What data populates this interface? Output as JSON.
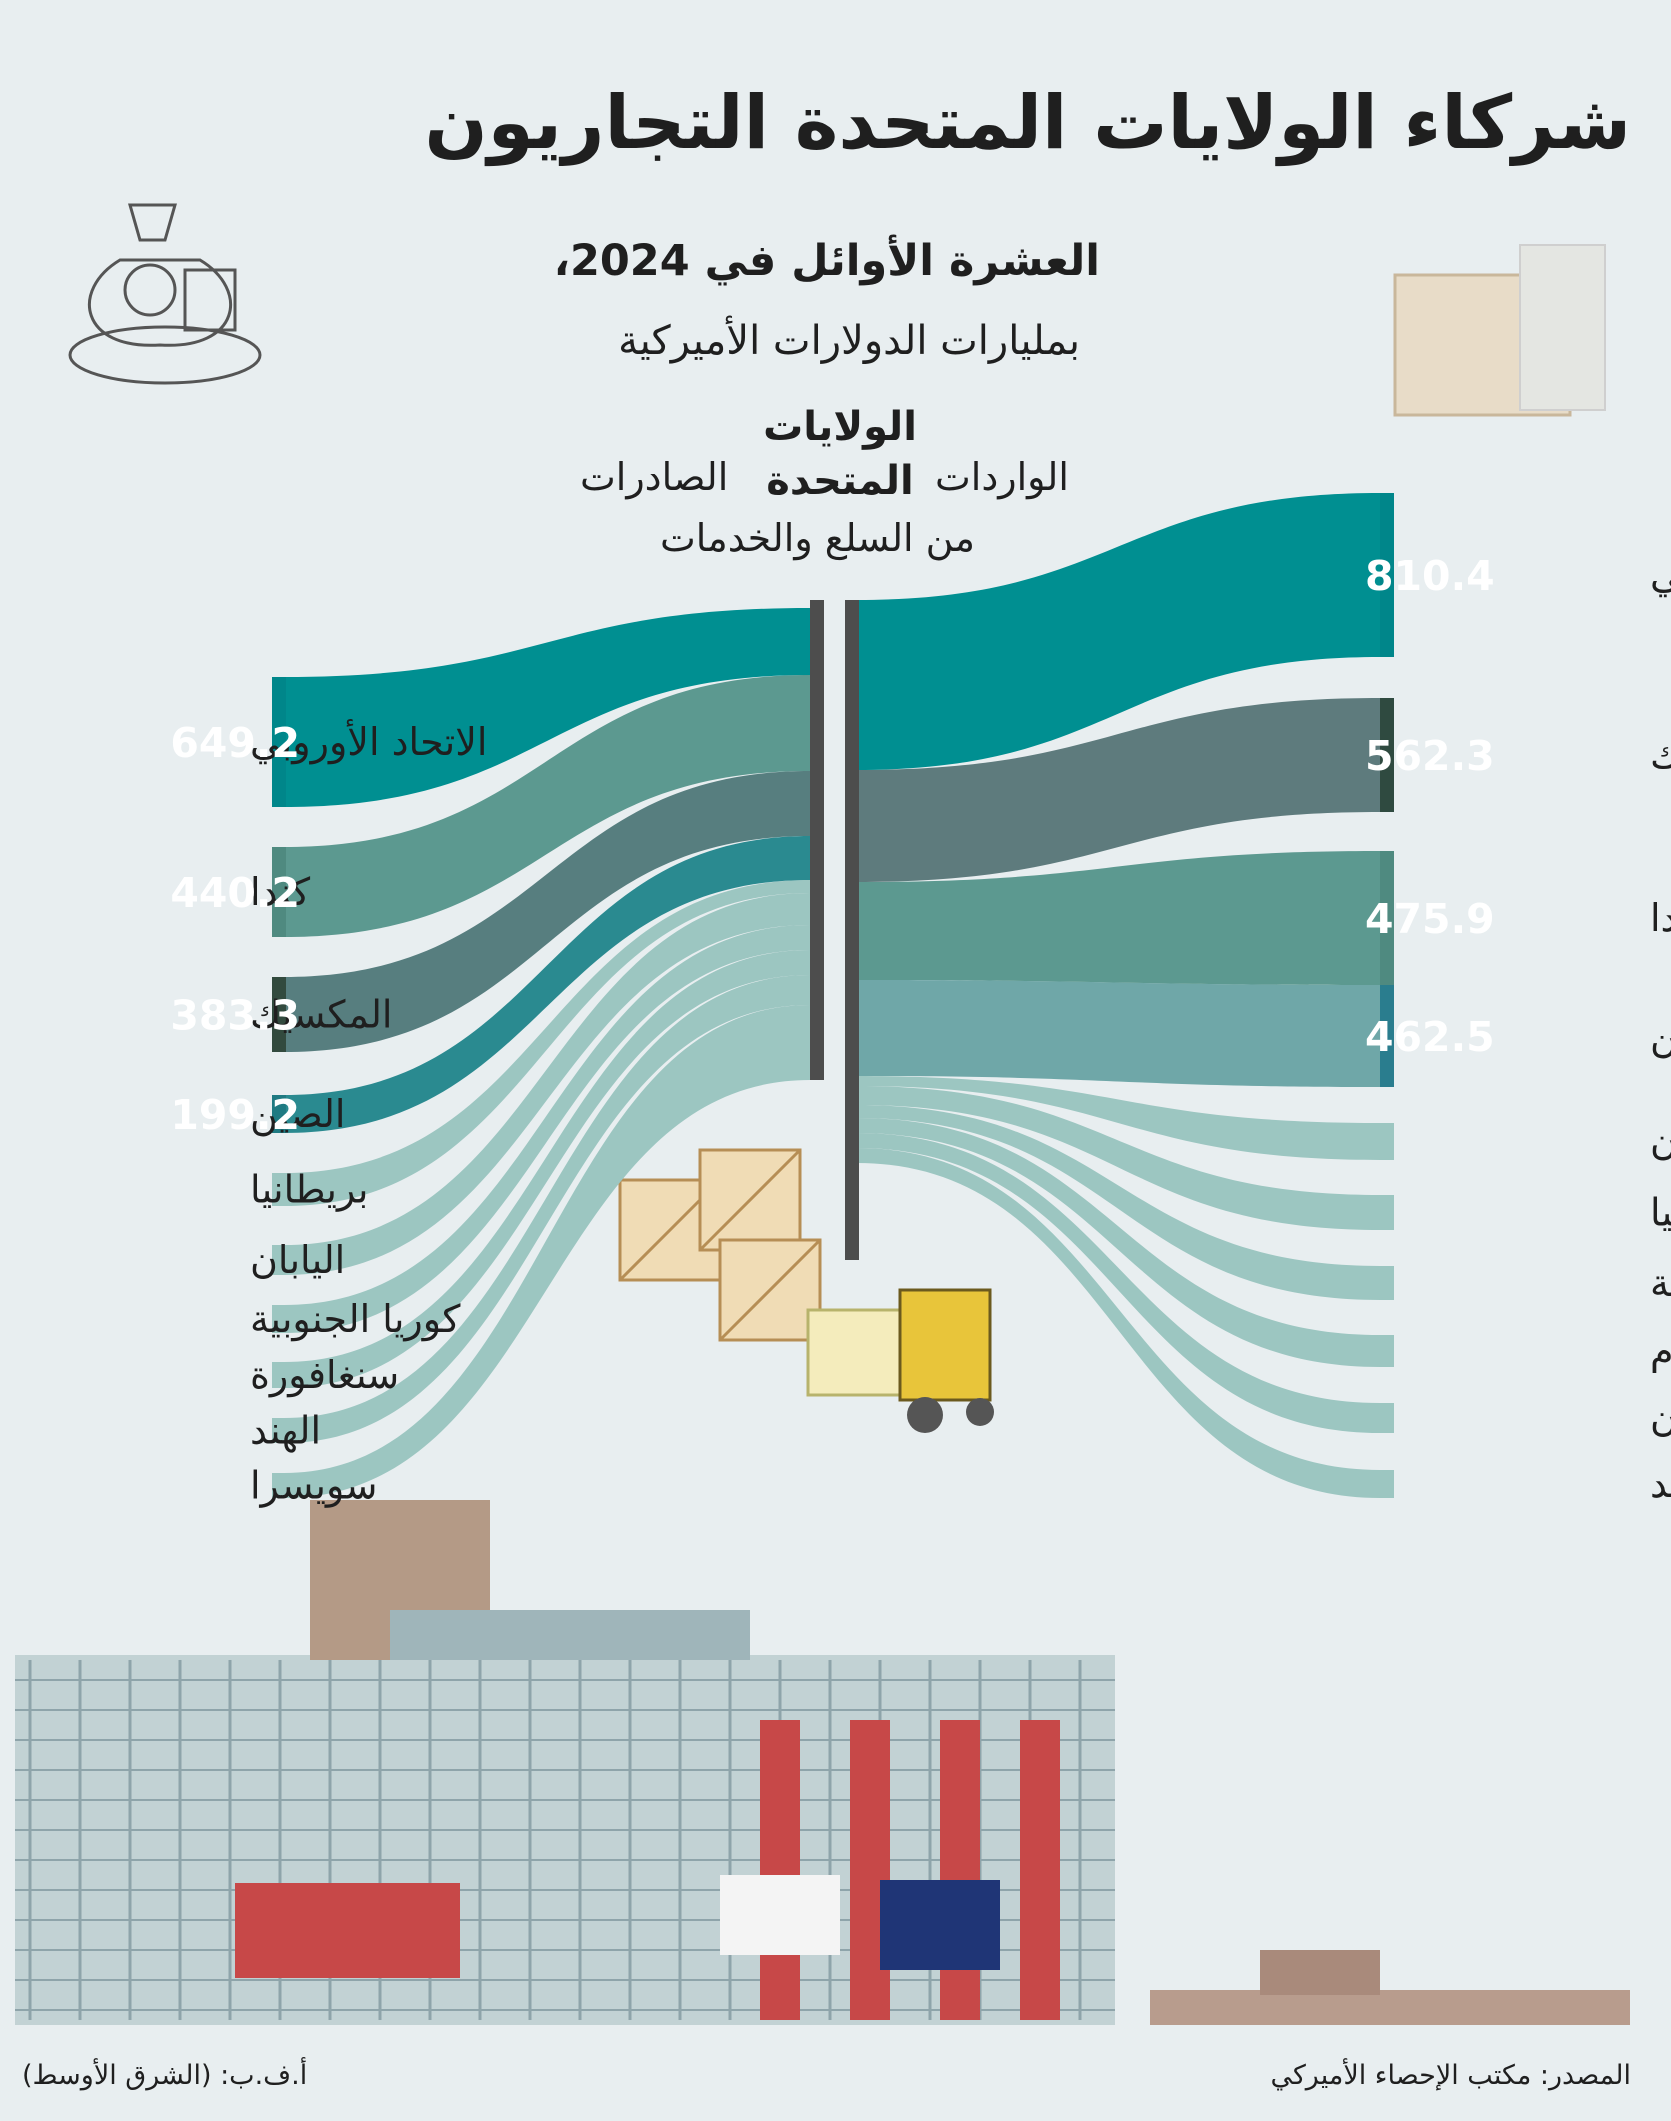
{
  "title": "شركاء الولايات المتحدة التجاريون",
  "subtitle": "العشرة الأوائل في 2024،",
  "subtitle2": "بمليارات الدولارات الأميركية",
  "center_label": [
    "الولايات",
    "المتحدة"
  ],
  "imports_label": "الواردات",
  "exports_label": "الصادرات",
  "goods_label": "من السلع والخدمات",
  "source": "المصدر: مكتب الإحصاء الأميركي",
  "credit": "أ.ف.ب: (الشرق الأوسط)",
  "chart_data": [
    {
      "type": "sankey",
      "name": "الصادرات",
      "categories": [
        "الاتحاد الأوروبي",
        "كندا",
        "المكسيك",
        "الصين",
        "بريطانيا",
        "اليابان",
        "كوريا الجنوبية",
        "سنغافورة",
        "الهند",
        "سويسرا"
      ],
      "values": [
        649.2,
        440.2,
        383.3,
        199.2,
        null,
        null,
        null,
        null,
        null,
        null
      ],
      "value_labels": [
        "649.2",
        "440.2",
        "383.3",
        "199.2",
        "",
        "",
        "",
        "",
        "",
        ""
      ],
      "colors": [
        "#008f91",
        "#5c9990",
        "#577e7f",
        "#2a8a90",
        "#9cc6c1",
        "#9cc6c1",
        "#9cc6c1",
        "#9cc6c1",
        "#9cc6c1",
        "#9cc6c1"
      ],
      "accent_colors": [
        "#00868a",
        "#4f8a80",
        "#324a3e",
        "#1f7a82",
        "#9cc6c1",
        "#9cc6c1",
        "#9cc6c1",
        "#9cc6c1",
        "#9cc6c1",
        "#9cc6c1"
      ]
    },
    {
      "type": "sankey",
      "name": "الواردات",
      "categories": [
        "الاتحاد الأوروبي",
        "المكسيك",
        "كندا",
        "الصين",
        "اليابان",
        "بريطانيا",
        "كوريا الجنوبية",
        "فيتنام",
        "تايوان",
        "الهند"
      ],
      "values": [
        810.4,
        562.3,
        475.9,
        462.5,
        null,
        null,
        null,
        null,
        null,
        null
      ],
      "value_labels": [
        "810.4",
        "562.3",
        "475.9",
        "462.5",
        "",
        "",
        "",
        "",
        "",
        ""
      ],
      "colors": [
        "#008f91",
        "#5e7b7d",
        "#5c9990",
        "#6fa7a8",
        "#9cc6c1",
        "#9cc6c1",
        "#9cc6c1",
        "#9cc6c1",
        "#9cc6c1",
        "#9cc6c1"
      ],
      "accent_colors": [
        "#00868a",
        "#2f4a40",
        "#4f8a80",
        "#2a7d8e",
        "#9cc6c1",
        "#9cc6c1",
        "#9cc6c1",
        "#9cc6c1",
        "#9cc6c1",
        "#9cc6c1"
      ]
    }
  ]
}
